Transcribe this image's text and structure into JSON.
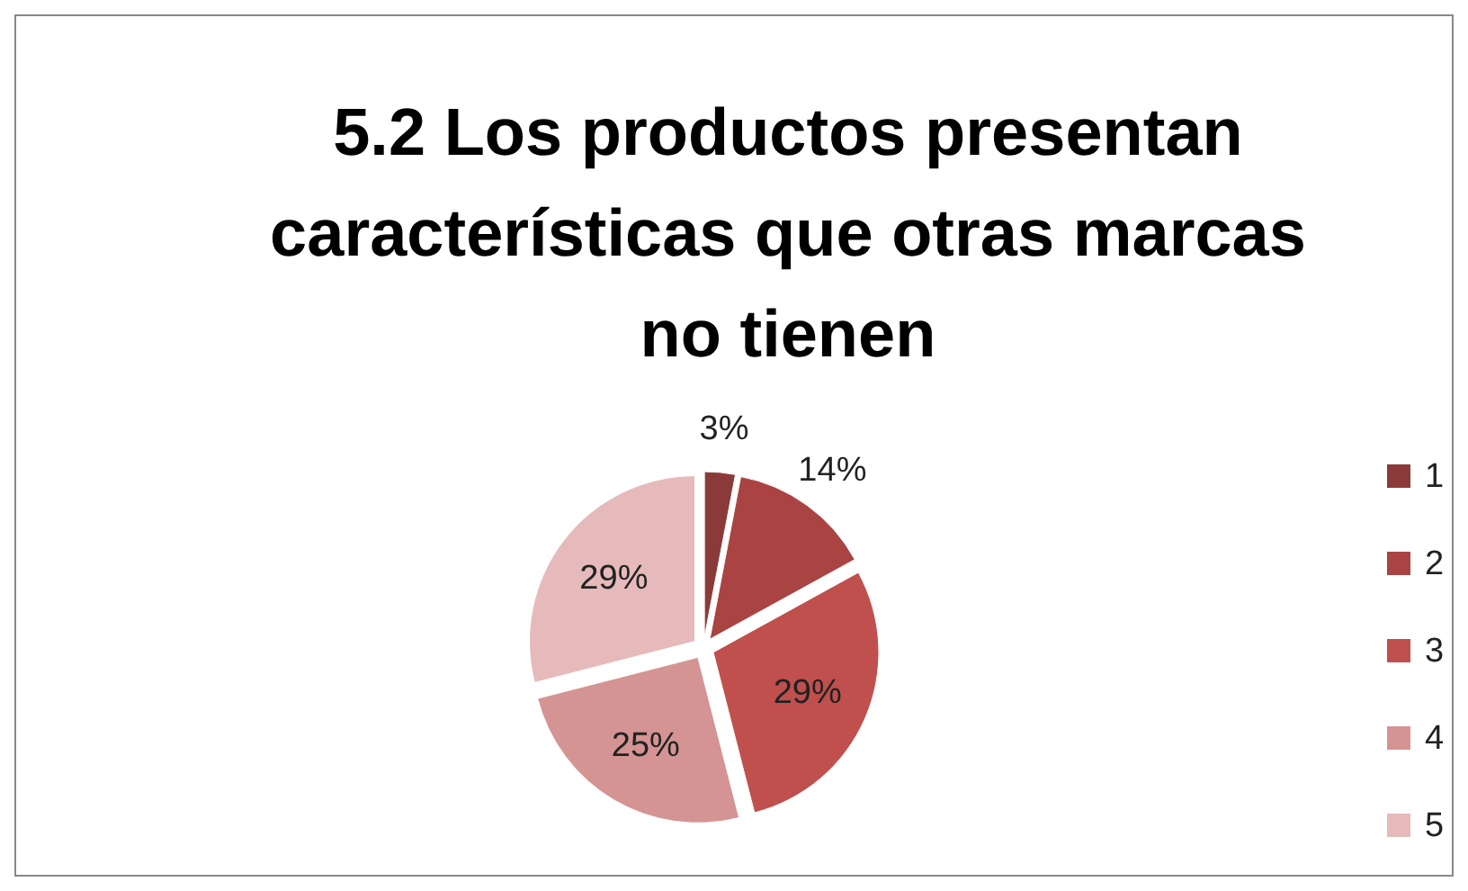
{
  "chart_data": {
    "type": "pie",
    "title": "5.2 Los productos presentan características que otras marcas no tienen",
    "categories": [
      "1",
      "2",
      "3",
      "4",
      "5"
    ],
    "values": [
      3,
      14,
      29,
      25,
      29
    ],
    "colors": [
      "#8b3a3a",
      "#a94442",
      "#c0504d",
      "#d49493",
      "#e6baba"
    ],
    "value_labels": [
      "3%",
      "14%",
      "29%",
      "25%",
      "29%"
    ],
    "legend": "right"
  }
}
